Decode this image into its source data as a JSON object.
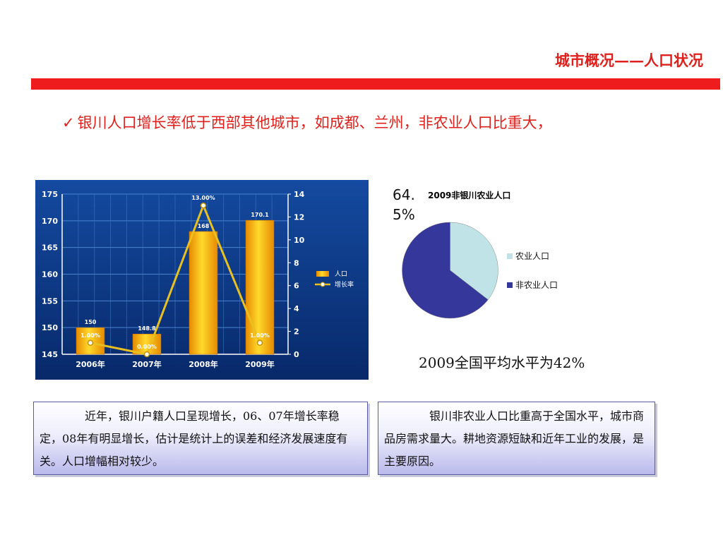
{
  "header": {
    "title": "城市概况——人口状况"
  },
  "bullet": {
    "check": "✓",
    "text": "银川人口增长率低于西部其他城市，如成都、兰州，非农业人口比重大，"
  },
  "chart_data": [
    {
      "type": "bar",
      "categories": [
        "2006年",
        "2007年",
        "2008年",
        "2009年"
      ],
      "series": [
        {
          "name": "人口",
          "type": "bar",
          "values": [
            150,
            148.8,
            168,
            170.1
          ],
          "labels": [
            "150",
            "148.8",
            "168",
            "170.1"
          ]
        },
        {
          "name": "增长率",
          "type": "line",
          "values": [
            1.0,
            0.0,
            13.0,
            1.0
          ],
          "labels": [
            "1.00%",
            "0.00%",
            "13.00%",
            "1.00%"
          ]
        }
      ],
      "ylim": [
        145,
        175
      ],
      "yticks": [
        "145",
        "150",
        "155",
        "160",
        "165",
        "170",
        "175"
      ],
      "y2lim": [
        0,
        14
      ],
      "y2ticks": [
        "0",
        "2",
        "4",
        "6",
        "8",
        "10",
        "12",
        "14"
      ],
      "grid": true,
      "legend": "right",
      "colors": {
        "background": "#0d3a86",
        "bar": "#f5b80c",
        "line": "#e8c020",
        "grid": "#4a84d0",
        "axis": "#ffffff"
      }
    },
    {
      "type": "pie",
      "title": "2009非银川农业人口",
      "value_label": "64.5%",
      "categories": [
        "农业人口",
        "非农业人口"
      ],
      "values": [
        35.5,
        64.5
      ],
      "colors": [
        "#bfe3e6",
        "#35379a"
      ],
      "legend": "right"
    }
  ],
  "nation_avg": "2009全国平均水平为42%",
  "notes": {
    "left": "近年，银川户籍人口呈现增长，06、07年增长率稳定，08年有明显增长，估计是统计上的误差和经济发展速度有关。人口增幅相对较少。",
    "right": "银川非农业人口比重高于全国水平，城市商品房需求量大。耕地资源短缺和近年工业的发展，是主要原因。"
  }
}
